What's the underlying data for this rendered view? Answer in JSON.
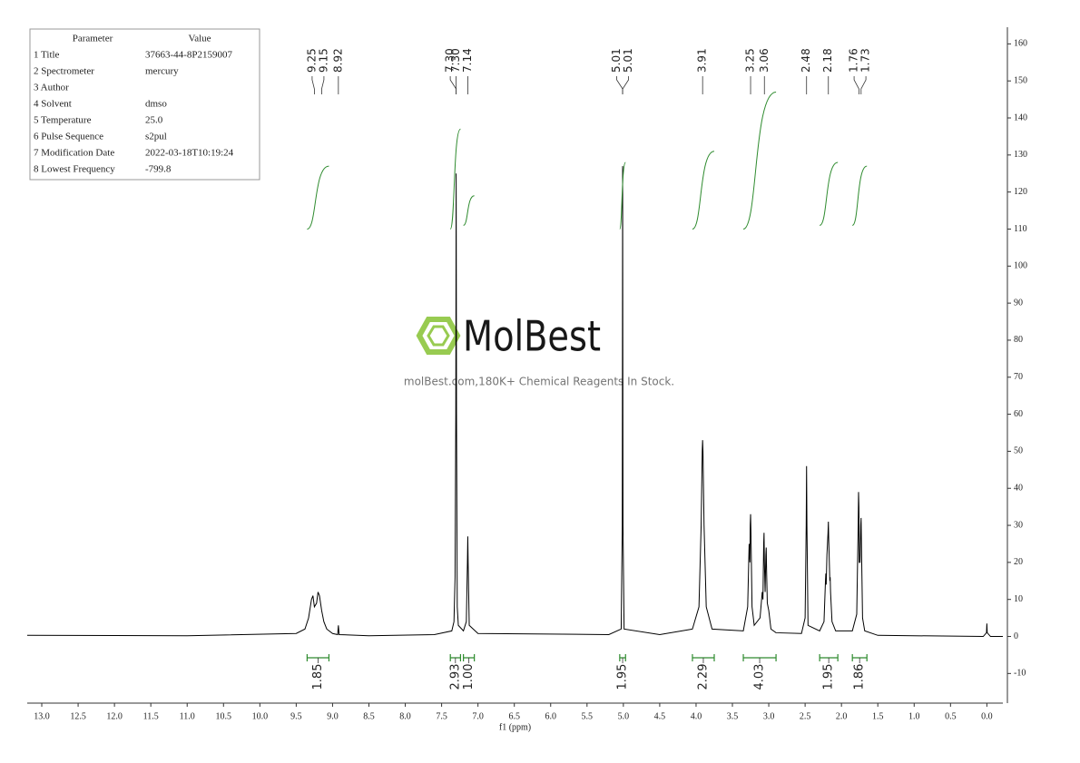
{
  "chart_data": {
    "type": "nmr",
    "x_label": "f1 (ppm)",
    "xlim": [
      13.2,
      -0.22
    ],
    "ylim": [
      -18,
      164.5
    ],
    "xticks": [
      {
        "value": 13,
        "label": "13.0"
      },
      12.5,
      {
        "value": 12,
        "label": "12.0"
      },
      11.5,
      {
        "value": 11,
        "label": "11.0"
      },
      10.5,
      {
        "value": 10,
        "label": "10.0"
      },
      9.5,
      {
        "value": 9,
        "label": "9.0"
      },
      8.5,
      {
        "value": 8,
        "label": "8.0"
      },
      7.5,
      {
        "value": 7,
        "label": "7.0"
      },
      6.5,
      {
        "value": 6,
        "label": "6.0"
      },
      5.5,
      {
        "value": 5,
        "label": "5.0"
      },
      4.5,
      {
        "value": 4,
        "label": "4.0"
      },
      3.5,
      {
        "value": 3,
        "label": "3.0"
      },
      2.5,
      {
        "value": 2,
        "label": "2.0"
      },
      1.5,
      {
        "value": 1,
        "label": "1.0"
      },
      0.5,
      {
        "value": 0,
        "label": "0.0"
      }
    ],
    "yticks": [
      -10,
      0,
      10,
      20,
      30,
      40,
      50,
      60,
      70,
      80,
      90,
      100,
      110,
      120,
      130,
      140,
      150,
      160
    ],
    "series": [
      {
        "color": "#000000",
        "x": [
          13.2,
          11,
          9.5,
          9.38,
          9.33,
          9.29,
          9.27,
          9.25,
          9.22,
          9.2,
          9.18,
          9.15,
          9.12,
          9.08,
          9.0,
          8.93,
          8.92,
          8.91,
          8.5,
          7.6,
          7.36,
          7.33,
          7.315,
          7.305,
          7.3,
          7.295,
          7.285,
          7.27,
          7.2,
          7.16,
          7.145,
          7.14,
          7.135,
          7.12,
          7.0,
          5.2,
          5.03,
          5.015,
          5.01,
          5.005,
          4.99,
          4.5,
          4.05,
          3.96,
          3.93,
          3.915,
          3.91,
          3.905,
          3.89,
          3.86,
          3.78,
          3.35,
          3.29,
          3.27,
          3.26,
          3.255,
          3.25,
          3.245,
          3.23,
          3.2,
          3.12,
          3.09,
          3.08,
          3.07,
          3.065,
          3.06,
          3.05,
          3.04,
          3.035,
          3.03,
          3.02,
          3.0,
          2.97,
          2.9,
          2.55,
          2.5,
          2.485,
          2.48,
          2.475,
          2.46,
          2.3,
          2.24,
          2.22,
          2.215,
          2.21,
          2.2,
          2.185,
          2.18,
          2.175,
          2.16,
          2.155,
          2.15,
          2.13,
          2.08,
          1.85,
          1.79,
          1.77,
          1.765,
          1.76,
          1.755,
          1.745,
          1.735,
          1.73,
          1.725,
          1.71,
          1.68,
          1.5,
          0.05,
          0.005,
          0.0,
          -0.005,
          -0.05,
          -0.22
        ],
        "values": [
          0.3,
          0.2,
          0.8,
          2,
          5,
          10,
          11,
          8,
          9,
          12,
          11,
          7,
          4,
          2,
          0.8,
          0.5,
          3,
          0.5,
          0.2,
          0.5,
          1.5,
          4,
          16,
          60,
          125,
          60,
          8,
          3,
          1.5,
          4,
          20,
          27,
          20,
          3,
          0.8,
          0.5,
          2,
          30,
          127,
          30,
          2,
          0.5,
          2,
          8,
          30,
          50,
          53,
          50,
          30,
          8,
          2,
          1.5,
          8,
          25,
          20,
          30,
          33,
          28,
          8,
          3,
          5,
          12,
          10,
          25,
          28,
          20,
          12,
          22,
          24,
          18,
          9,
          7,
          2,
          1,
          0.8,
          5,
          30,
          46,
          30,
          3,
          1.5,
          4,
          15,
          17,
          14,
          22,
          28,
          31,
          26,
          15,
          16,
          12,
          4,
          1.5,
          1.5,
          6,
          30,
          39,
          35,
          20,
          20,
          30,
          32,
          25,
          5,
          1.5,
          0.3,
          0,
          1,
          3.5,
          1,
          0,
          0
        ]
      }
    ],
    "peaks": [
      9.25,
      9.15,
      8.92,
      {
        "value": 7.3,
        "label": "7.30"
      },
      {
        "value": 7.3,
        "label": "7.30"
      },
      7.14,
      5.01,
      5.01,
      3.91,
      3.25,
      3.06,
      2.48,
      2.18,
      1.76,
      1.73
    ],
    "integral_color": "#2e8b2e",
    "integrals": [
      {
        "range": [
          9.35,
          9.05
        ],
        "value": 1.85,
        "curve": [
          110,
          127
        ]
      },
      {
        "range": [
          7.38,
          7.24
        ],
        "value": 2.93,
        "curve": [
          110,
          137
        ]
      },
      {
        "range": [
          7.2,
          7.05
        ],
        "value": 1,
        "label": "1.00",
        "curve": [
          111,
          119
        ]
      },
      {
        "range": [
          5.05,
          4.97
        ],
        "value": 1.95,
        "curve": [
          110,
          128
        ]
      },
      {
        "range": [
          4.05,
          3.75
        ],
        "value": 2.29,
        "curve": [
          110,
          131
        ]
      },
      {
        "range": [
          3.35,
          2.9
        ],
        "value": 4.03,
        "curve": [
          110,
          147
        ]
      },
      {
        "range": [
          2.3,
          2.05
        ],
        "value": 1.95,
        "curve": [
          111,
          128
        ]
      },
      {
        "range": [
          1.85,
          1.65
        ],
        "value": 1.86,
        "curve": [
          111,
          127
        ]
      }
    ]
  },
  "parameters": {
    "header": [
      "Parameter",
      "Value"
    ],
    "rows": [
      [
        "1 Title",
        "37663-44-8P2159007"
      ],
      [
        "2 Spectrometer",
        "mercury"
      ],
      [
        "3 Author",
        ""
      ],
      [
        "4 Solvent",
        "dmso"
      ],
      [
        "5 Temperature",
        "25.0"
      ],
      [
        "6 Pulse Sequence",
        "s2pul"
      ],
      [
        "7 Modification Date",
        "2022-03-18T10:19:24"
      ],
      [
        "8 Lowest Frequency",
        "-799.8"
      ]
    ]
  },
  "watermark": {
    "logo": "MolBest",
    "tagline": "molBest.com,180K+ Chemical Reagents In Stock."
  }
}
